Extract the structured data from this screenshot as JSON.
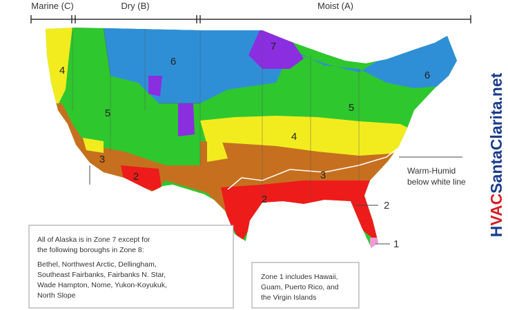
{
  "header": {
    "regions": [
      "Marine (C)",
      "Dry (B)",
      "Moist (A)"
    ]
  },
  "map": {
    "zone_labels": [
      "4",
      "6",
      "5",
      "3",
      "2",
      "7",
      "6",
      "5",
      "4",
      "3",
      "2"
    ]
  },
  "callouts": {
    "warm_humid": [
      "Warm-Humid",
      "below white line"
    ],
    "zone_2": "2",
    "zone_1": "1"
  },
  "notes": {
    "alaska": [
      "All of Alaska is in Zone 7 except for",
      "the following boroughs in Zone 8:",
      "Bethel, Northwest Arctic, Dellingham,",
      "Southeast Fairbanks, Fairbanks N. Star,",
      "Wade Hampton, Nome, Yukon-Koyukuk,",
      "North Slope"
    ],
    "zone1": [
      "Zone 1 includes Hawaii,",
      "Guam, Puerto Rico, and",
      "the Virgin Islands"
    ]
  },
  "watermark": [
    "H",
    "VAC",
    "SantaClarita.net"
  ]
}
